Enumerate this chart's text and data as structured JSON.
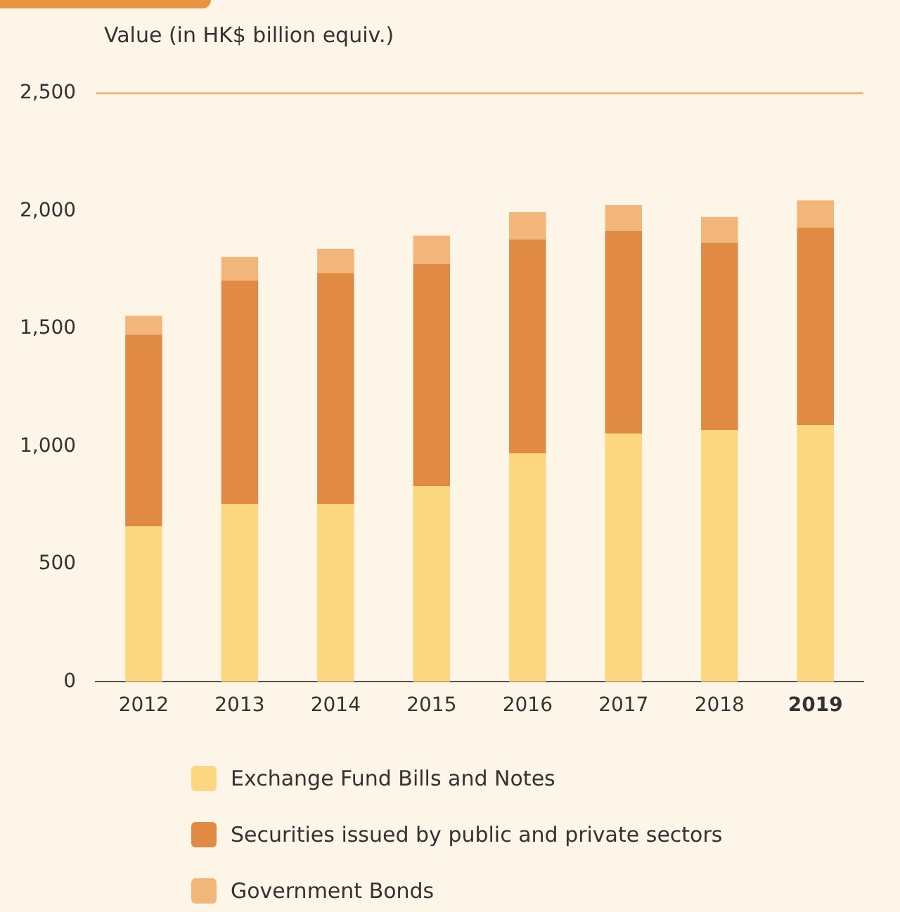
{
  "chart_data": {
    "type": "bar",
    "stacked": true,
    "ylabel": "Value (in HK$ billion equiv.)",
    "categories": [
      "2012",
      "2013",
      "2014",
      "2015",
      "2016",
      "2017",
      "2018",
      "2019"
    ],
    "series": [
      {
        "name": "Exchange Fund Bills and Notes",
        "color": "#fdd77f",
        "values": [
          660,
          755,
          755,
          830,
          970,
          1055,
          1070,
          1090
        ]
      },
      {
        "name": "Securities issued by public and private sectors",
        "color": "#e08a44",
        "values": [
          815,
          950,
          980,
          945,
          910,
          860,
          795,
          840
        ]
      },
      {
        "name": "Government Bonds",
        "color": "#f2b67a",
        "values": [
          80,
          100,
          105,
          120,
          115,
          110,
          110,
          115
        ]
      }
    ],
    "ylim": [
      0,
      2500
    ],
    "yticks": [
      0,
      500,
      {
        "value": 1000,
        "label": "1,000"
      },
      {
        "value": 1500,
        "label": "1,500"
      },
      {
        "value": 2000,
        "label": "2,000"
      },
      {
        "value": 2500,
        "label": "2,500"
      }
    ],
    "grid": false,
    "legend": "bottom",
    "ref_lines": [
      {
        "axis": "y",
        "value": 2500,
        "color": "#f5b877"
      }
    ]
  }
}
